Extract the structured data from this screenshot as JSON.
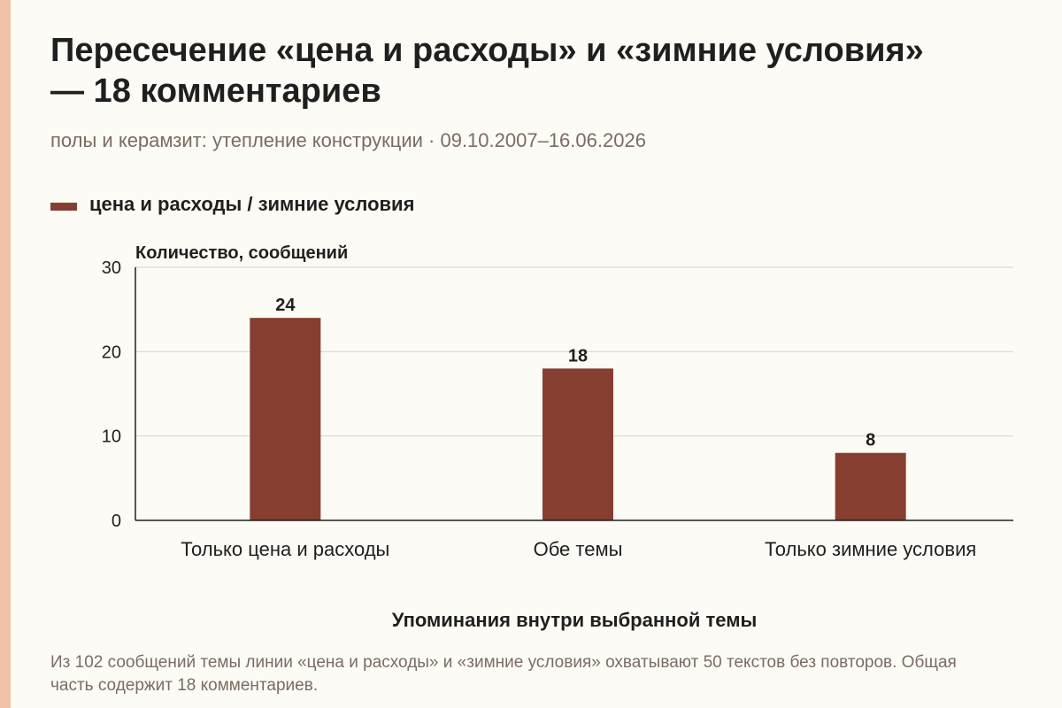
{
  "header": {
    "title": "Пересечение «цена и расходы» и «зимние условия» — 18 комментариев",
    "subtitle": "полы и керамзит: утепление конструкции · 09.10.2007–16.06.2026"
  },
  "legend": {
    "label": "цена и расходы / зимние условия"
  },
  "footnote": "Из 102 сообщений темы линии «цена и расходы» и «зимние условия» охватывают 50 текстов без повторов. Общая часть содержит 18 комментариев.",
  "colors": {
    "bar": "#863e30",
    "accent_bar": "#f0c3a6",
    "background": "#fdfbf5"
  },
  "chart_data": {
    "type": "bar",
    "categories": [
      "Только цена и расходы",
      "Обе темы",
      "Только зимние условия"
    ],
    "series": [
      {
        "name": "цена и расходы / зимние условия",
        "values": [
          24,
          18,
          8
        ]
      }
    ],
    "value_labels": [
      "24",
      "18",
      "8"
    ],
    "ylabel": "Количество, сообщений",
    "xlabel": "Упоминания внутри выбранной темы",
    "ylim": [
      0,
      30
    ],
    "yticks": [
      0,
      10,
      20,
      30
    ],
    "ytick_labels": [
      "0",
      "10",
      "20",
      "30"
    ],
    "grid": true,
    "legend_position": "top-left"
  }
}
